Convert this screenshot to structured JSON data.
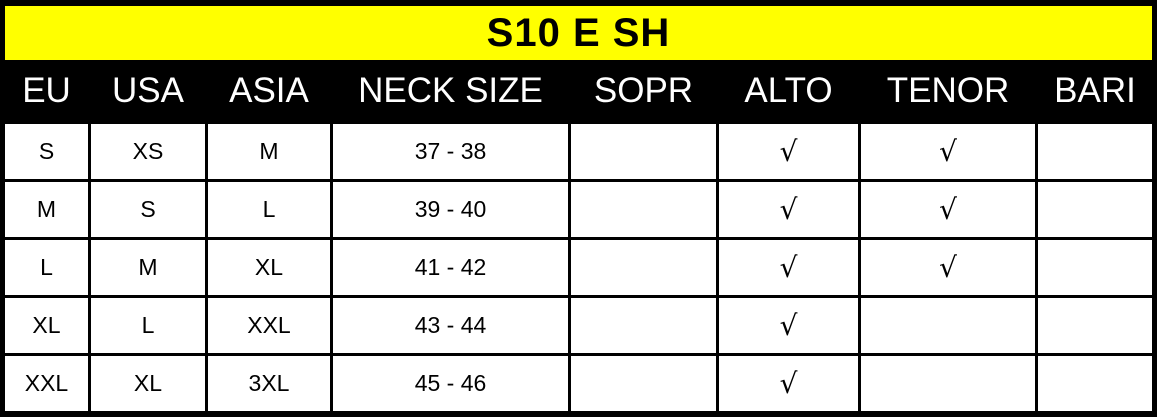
{
  "title": "S10 E SH",
  "colors": {
    "title_bg": "#ffff00",
    "header_bg": "#000000",
    "cell_bg": "#ffffff"
  },
  "columns": [
    "EU",
    "USA",
    "ASIA",
    "NECK SIZE",
    "SOPR",
    "ALTO",
    "TENOR",
    "BARI"
  ],
  "rows": [
    [
      "S",
      "XS",
      "M",
      "37 - 38",
      "",
      "√",
      "√",
      ""
    ],
    [
      "M",
      "S",
      "L",
      "39 - 40",
      "",
      "√",
      "√",
      ""
    ],
    [
      "L",
      "M",
      "XL",
      "41 - 42",
      "",
      "√",
      "√",
      ""
    ],
    [
      "XL",
      "L",
      "XXL",
      "43 - 44",
      "",
      "√",
      "",
      ""
    ],
    [
      "XXL",
      "XL",
      "3XL",
      "45 - 46",
      "",
      "√",
      "",
      ""
    ]
  ]
}
